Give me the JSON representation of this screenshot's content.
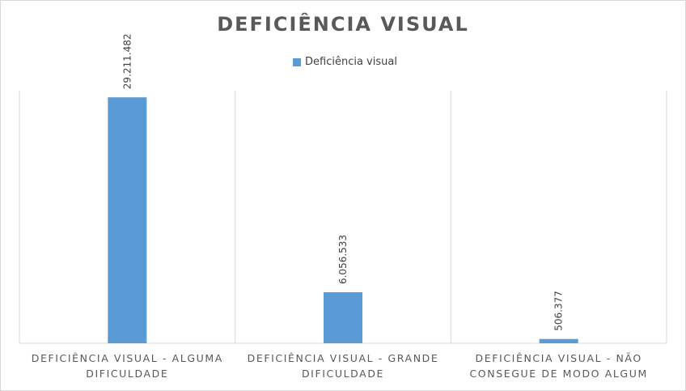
{
  "chart_data": {
    "type": "bar",
    "title": "DEFICIÊNCIA VISUAL",
    "legend": {
      "position": "top",
      "entries": [
        "Deficiência visual"
      ]
    },
    "categories": [
      [
        "DEFICIÊNCIA VISUAL - ALGUMA",
        "DIFICULDADE"
      ],
      [
        "DEFICIÊNCIA VISUAL - GRANDE",
        "DIFICULDADE"
      ],
      [
        "DEFICIÊNCIA VISUAL - NÃO",
        "CONSEGUE DE MODO ALGUM"
      ]
    ],
    "series": [
      {
        "name": "Deficiência visual",
        "values": [
          29211482,
          6056533,
          506377
        ],
        "color": "#5b9bd5"
      }
    ],
    "data_labels": [
      "29.211.482",
      "6.056.533",
      "506.377"
    ],
    "ylim": [
      0,
      30000000
    ],
    "grid": false,
    "xlabel": "",
    "ylabel": ""
  }
}
